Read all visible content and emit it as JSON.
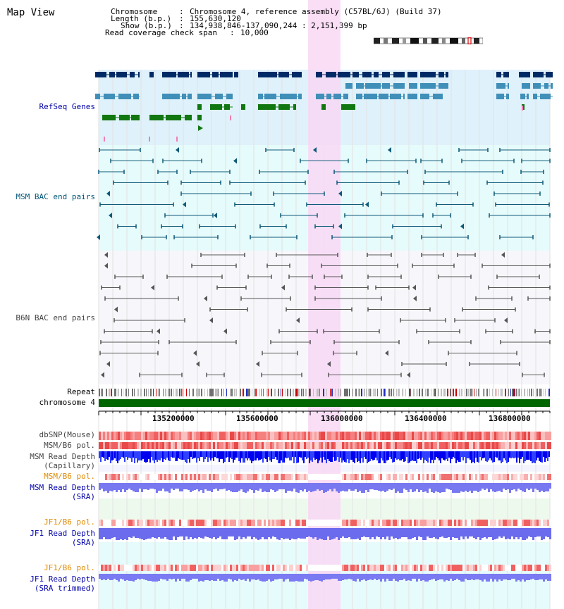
{
  "app": {
    "title": "Map View"
  },
  "info": {
    "chromosome_label": "Chromosome",
    "chromosome_value": "Chromosome 4, reference assembly (C57BL/6J) (Build 37)",
    "length_label": "Length (b.p.)",
    "length_value": "155,630,120",
    "show_label": "Show (b.p.)",
    "show_value": "134,938,846-137,090,244 : 2,151,399 bp",
    "coverage_label": "Read coverage check span",
    "coverage_value": "10,000"
  },
  "tracks": {
    "refseq": "RefSeq Genes",
    "msm_bac": "MSM BAC end pairs",
    "b6n_bac": "B6N BAC end pairs",
    "repeat": "Repeat",
    "chromosome": "chromosome 4",
    "dbsnp": "dbSNP(Mouse)",
    "msm_b6_pol_1": "MSM/B6 pol.",
    "msm_depth_cap_1": "MSM Read Depth",
    "msm_depth_cap_2": "(Capillary)",
    "msm_b6_pol_2": "MSM/B6 pol.",
    "msm_depth_sra_1": "MSM Read Depth",
    "msm_depth_sra_2": "(SRA)",
    "jf1_b6_pol_1": "JF1/B6 pol.",
    "jf1_depth_sra_1": "JF1 Read Depth",
    "jf1_depth_sra_2": "(SRA)",
    "jf1_b6_pol_2": "JF1/B6 pol.",
    "jf1_depth_trim_1": "JF1 Read Depth",
    "jf1_depth_trim_2": "(SRA trimmed)"
  },
  "axis": {
    "ticks": [
      "135200000",
      "135600000",
      "136000000",
      "136400000",
      "136800000"
    ]
  },
  "colors": {
    "highlight": "#f8d8f4",
    "refseq_bg": "#dff1fb",
    "msm_bg": "#e6fbfb",
    "b6n_bg": "#f7f7fb",
    "gene_dark": "#002a66",
    "gene_mid": "#3f8fb8",
    "gene_green": "#117711",
    "chrom_green": "#006600"
  }
}
